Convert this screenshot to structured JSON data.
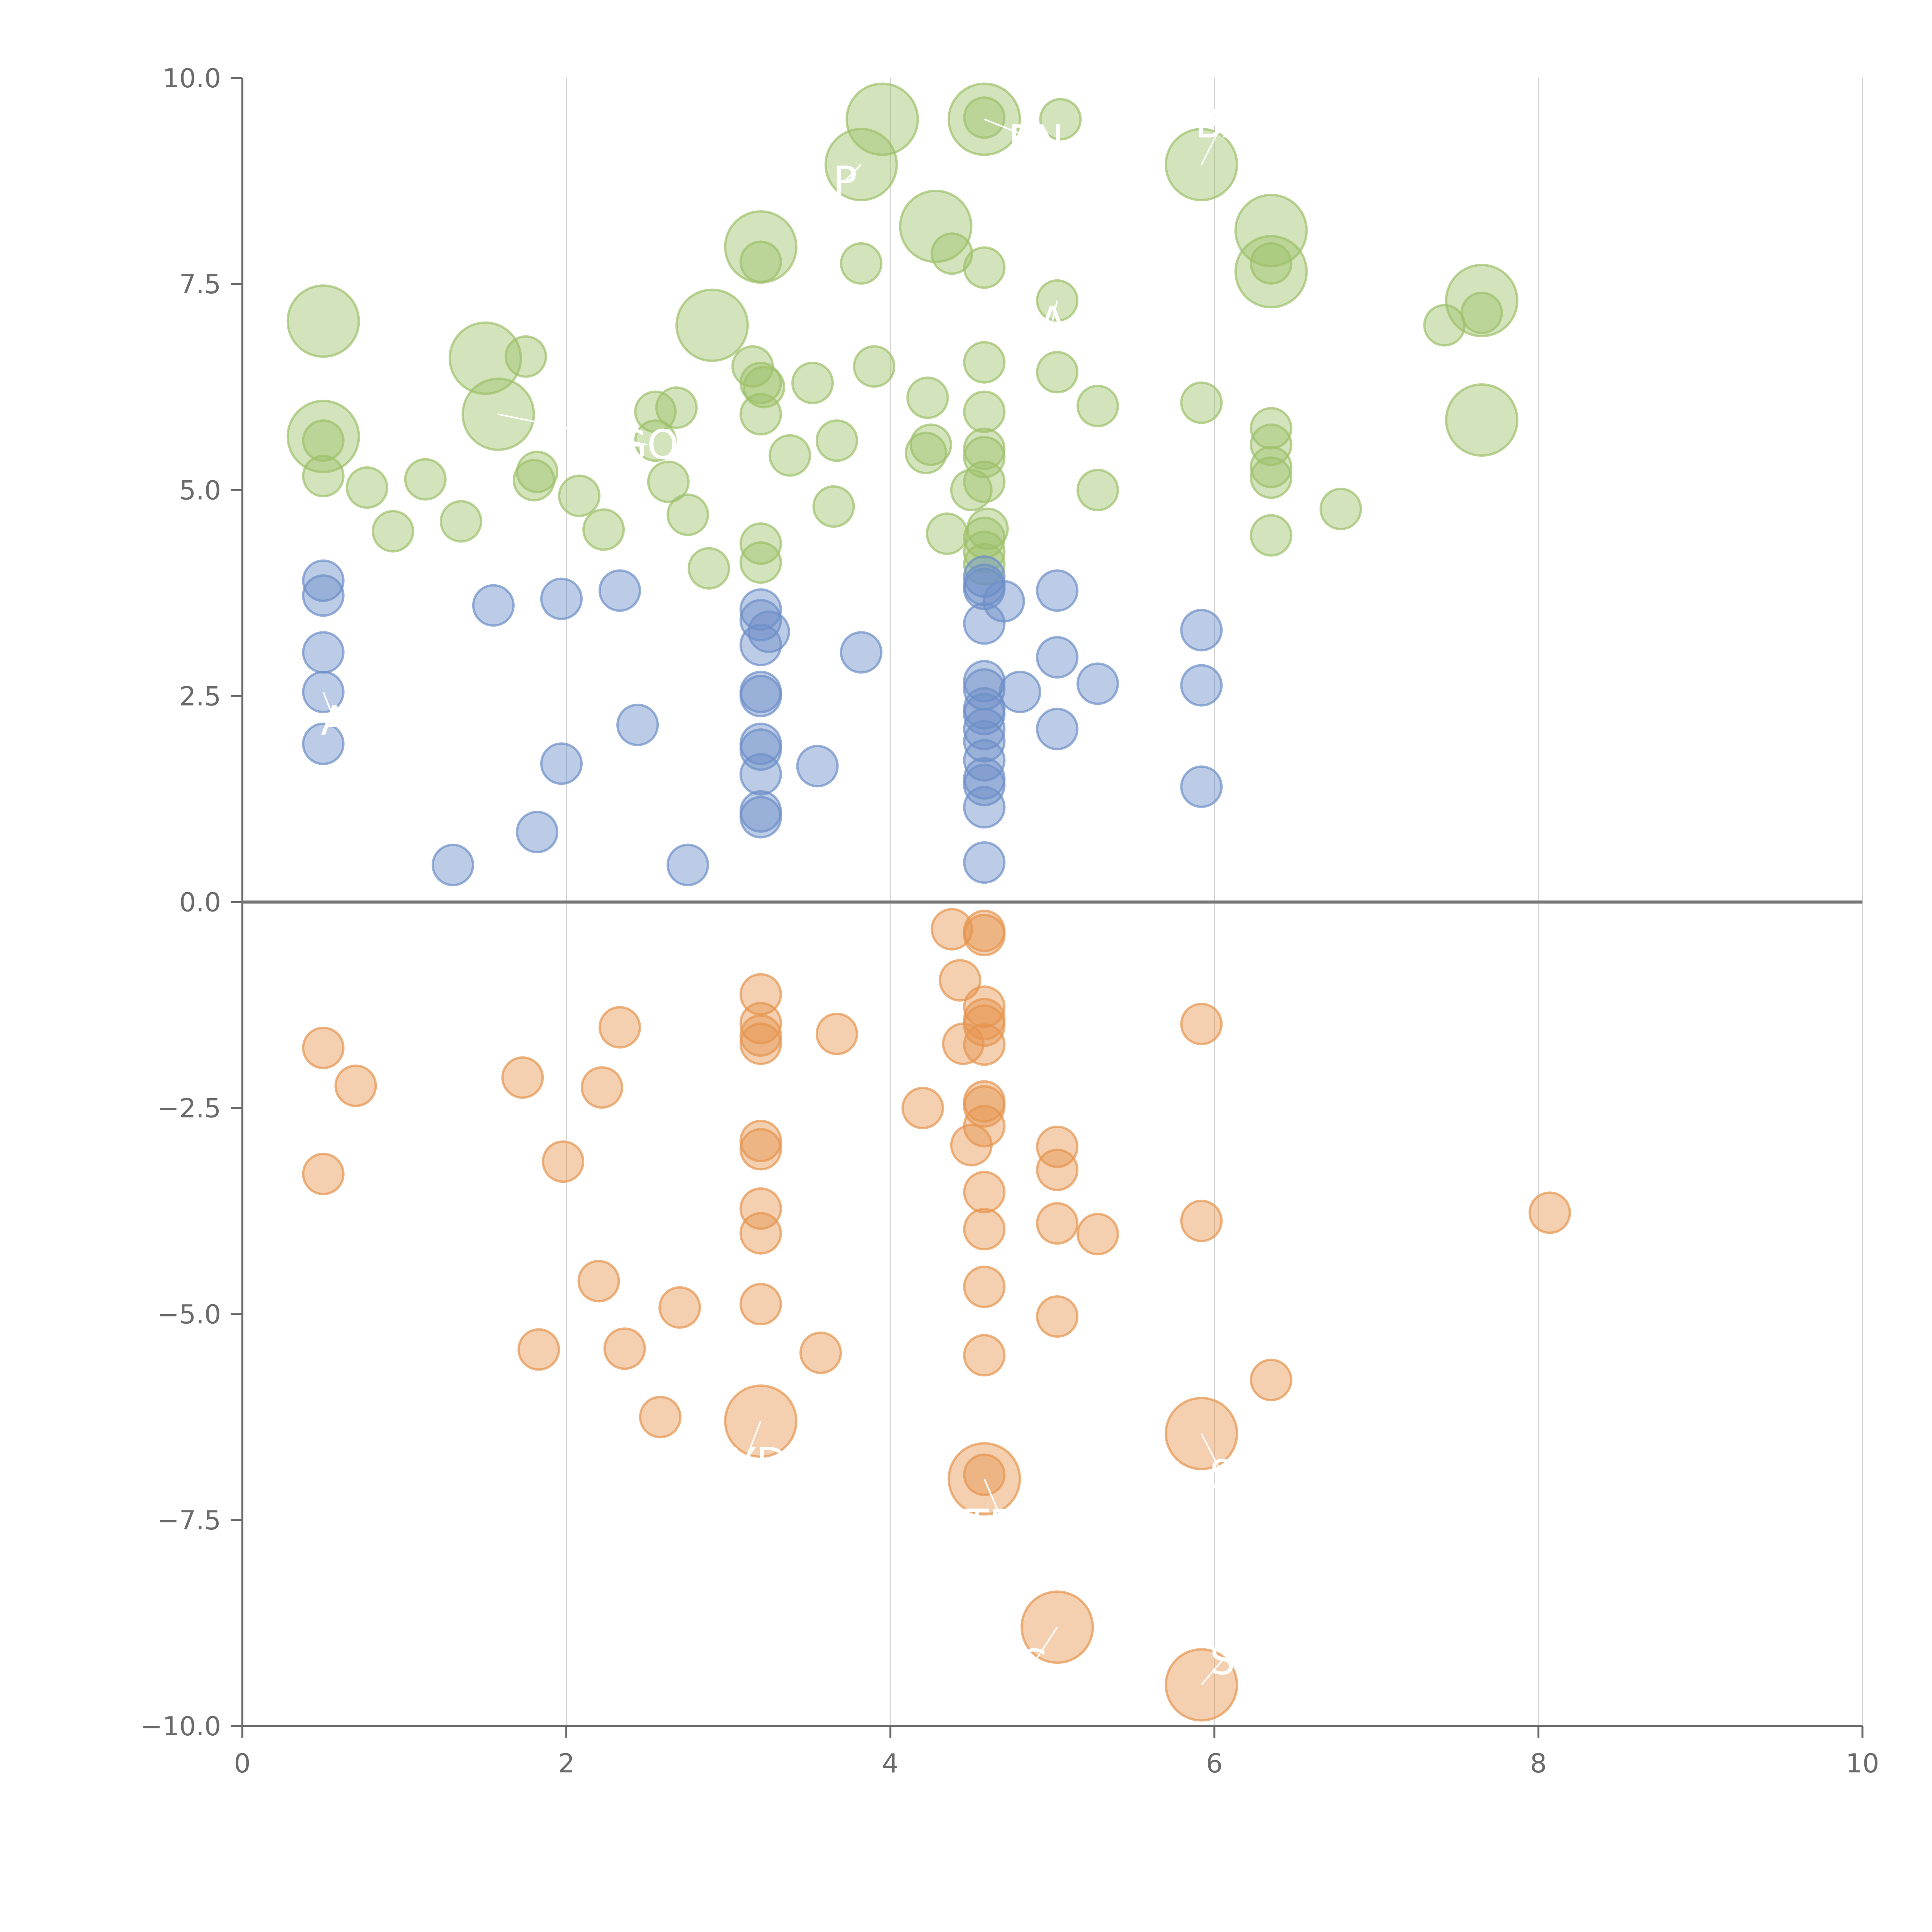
{
  "colors": {
    "positive_high": "#9dc16a",
    "positive_low": "#6c8fc8",
    "negative": "#e6944f",
    "axis": "#6b6b6b",
    "grid": "#d4d4d4",
    "zero_line": "#777777",
    "label": "#ffffff"
  },
  "chart_data": {
    "type": "scatter",
    "title": "",
    "xlabel": "",
    "ylabel": "",
    "xlim": [
      0,
      10
    ],
    "ylim": [
      -10,
      10
    ],
    "x_ticks": [
      0,
      2,
      4,
      6,
      8,
      10
    ],
    "x_tick_labels": [
      "0",
      "2",
      "4",
      "6",
      "8",
      "10"
    ],
    "y_ticks": [
      -10,
      -7.5,
      -5,
      -2.5,
      0,
      2.5,
      5,
      7.5,
      10
    ],
    "y_tick_labels": [
      "−10.0",
      "−7.5",
      "−5.0",
      "−2.5",
      "0.0",
      "2.5",
      "5.0",
      "7.5",
      "10.0"
    ],
    "grid": "vertical",
    "zero_line": true,
    "series": [
      {
        "name": "high positive",
        "color_key": "positive_high",
        "points": [
          [
            3.95,
            9.5,
            2
          ],
          [
            4.58,
            9.5,
            2
          ],
          [
            4.58,
            9.52,
            1
          ],
          [
            5.05,
            9.5,
            1
          ],
          [
            3.82,
            8.95,
            2
          ],
          [
            5.92,
            8.95,
            2
          ],
          [
            4.28,
            8.2,
            2
          ],
          [
            6.35,
            8.15,
            2
          ],
          [
            3.2,
            7.95,
            2
          ],
          [
            3.2,
            7.77,
            1
          ],
          [
            4.38,
            7.87,
            1
          ],
          [
            4.58,
            7.7,
            1
          ],
          [
            3.82,
            7.75,
            1
          ],
          [
            6.35,
            7.75,
            1
          ],
          [
            6.35,
            7.65,
            2
          ],
          [
            7.65,
            7.3,
            2
          ],
          [
            7.65,
            7.15,
            1
          ],
          [
            7.42,
            7.0,
            1
          ],
          [
            5.03,
            7.3,
            1
          ],
          [
            0.5,
            7.05,
            2
          ],
          [
            2.9,
            7.0,
            2
          ],
          [
            1.5,
            6.6,
            2
          ],
          [
            1.75,
            6.62,
            1
          ],
          [
            3.15,
            6.5,
            1
          ],
          [
            3.9,
            6.5,
            1
          ],
          [
            4.58,
            6.55,
            1
          ],
          [
            5.03,
            6.43,
            1
          ],
          [
            3.2,
            6.3,
            1
          ],
          [
            3.22,
            6.25,
            1
          ],
          [
            3.52,
            6.3,
            1
          ],
          [
            4.23,
            6.12,
            1
          ],
          [
            5.28,
            6.02,
            1
          ],
          [
            5.92,
            6.06,
            1
          ],
          [
            2.55,
            5.95,
            1
          ],
          [
            2.68,
            6.0,
            1
          ],
          [
            3.2,
            5.92,
            1
          ],
          [
            4.58,
            5.95,
            1
          ],
          [
            6.35,
            5.75,
            1
          ],
          [
            7.65,
            5.85,
            2
          ],
          [
            1.58,
            5.92,
            2
          ],
          [
            0.5,
            5.65,
            2
          ],
          [
            0.5,
            5.6,
            1
          ],
          [
            2.55,
            5.6,
            1
          ],
          [
            3.67,
            5.6,
            1
          ],
          [
            4.25,
            5.55,
            1
          ],
          [
            4.22,
            5.45,
            1
          ],
          [
            4.58,
            5.5,
            1
          ],
          [
            4.58,
            5.4,
            1
          ],
          [
            6.35,
            5.55,
            1
          ],
          [
            3.38,
            5.42,
            1
          ],
          [
            6.35,
            5.28,
            1
          ],
          [
            6.35,
            5.15,
            1
          ],
          [
            1.82,
            5.22,
            1
          ],
          [
            1.8,
            5.12,
            1
          ],
          [
            0.5,
            5.17,
            1
          ],
          [
            1.13,
            5.13,
            1
          ],
          [
            0.77,
            5.03,
            1
          ],
          [
            2.63,
            5.1,
            1
          ],
          [
            4.58,
            5.1,
            1
          ],
          [
            4.5,
            5.0,
            1
          ],
          [
            5.28,
            5.0,
            1
          ],
          [
            2.08,
            4.93,
            1
          ],
          [
            3.65,
            4.8,
            1
          ],
          [
            6.78,
            4.77,
            1
          ],
          [
            2.75,
            4.7,
            1
          ],
          [
            0.93,
            4.5,
            1
          ],
          [
            1.35,
            4.62,
            1
          ],
          [
            2.23,
            4.52,
            1
          ],
          [
            4.35,
            4.47,
            1
          ],
          [
            4.6,
            4.53,
            1
          ],
          [
            4.58,
            4.42,
            1
          ],
          [
            6.35,
            4.45,
            1
          ],
          [
            3.2,
            4.35,
            1
          ],
          [
            4.58,
            4.25,
            1
          ],
          [
            3.2,
            4.12,
            1
          ],
          [
            4.58,
            4.1,
            1
          ],
          [
            2.88,
            4.05,
            1
          ]
        ]
      },
      {
        "name": "low positive",
        "color_key": "positive_low",
        "points": [
          [
            0.5,
            3.9,
            1
          ],
          [
            0.5,
            3.72,
            1
          ],
          [
            1.55,
            3.6,
            1
          ],
          [
            1.97,
            3.68,
            1
          ],
          [
            2.33,
            3.78,
            1
          ],
          [
            3.2,
            3.55,
            1
          ],
          [
            3.2,
            3.42,
            1
          ],
          [
            3.25,
            3.28,
            1
          ],
          [
            3.2,
            3.12,
            1
          ],
          [
            3.82,
            3.03,
            1
          ],
          [
            4.58,
            3.95,
            1
          ],
          [
            4.58,
            3.85,
            1
          ],
          [
            4.58,
            3.8,
            1
          ],
          [
            4.7,
            3.65,
            1
          ],
          [
            4.58,
            3.38,
            1
          ],
          [
            5.03,
            3.78,
            1
          ],
          [
            5.92,
            3.3,
            1
          ],
          [
            0.5,
            3.03,
            1
          ],
          [
            5.03,
            2.97,
            1
          ],
          [
            4.58,
            2.68,
            1
          ],
          [
            5.28,
            2.65,
            1
          ],
          [
            5.92,
            2.63,
            1
          ],
          [
            4.58,
            2.58,
            1
          ],
          [
            4.8,
            2.55,
            1
          ],
          [
            0.5,
            2.55,
            1
          ],
          [
            3.2,
            2.55,
            1
          ],
          [
            3.2,
            2.5,
            1
          ],
          [
            4.58,
            2.35,
            1
          ],
          [
            4.58,
            2.28,
            1
          ],
          [
            2.44,
            2.15,
            1
          ],
          [
            4.58,
            2.1,
            1
          ],
          [
            5.03,
            2.1,
            1
          ],
          [
            4.58,
            1.95,
            1
          ],
          [
            3.2,
            1.92,
            1
          ],
          [
            3.2,
            1.85,
            1
          ],
          [
            0.5,
            1.92,
            1
          ],
          [
            4.58,
            1.72,
            1
          ],
          [
            1.97,
            1.68,
            1
          ],
          [
            3.55,
            1.65,
            1
          ],
          [
            3.2,
            1.55,
            1
          ],
          [
            4.58,
            1.5,
            1
          ],
          [
            4.58,
            1.42,
            1
          ],
          [
            5.92,
            1.4,
            1
          ],
          [
            4.58,
            1.15,
            1
          ],
          [
            3.2,
            1.1,
            1
          ],
          [
            3.2,
            1.03,
            1
          ],
          [
            1.82,
            0.85,
            1
          ],
          [
            1.3,
            0.45,
            1
          ],
          [
            2.75,
            0.45,
            1
          ],
          [
            4.58,
            0.48,
            1
          ]
        ]
      },
      {
        "name": "negative",
        "color_key": "negative",
        "points": [
          [
            4.38,
            -0.33,
            1
          ],
          [
            4.58,
            -0.35,
            1
          ],
          [
            4.58,
            -0.4,
            1
          ],
          [
            4.43,
            -0.95,
            1
          ],
          [
            3.2,
            -1.12,
            1
          ],
          [
            4.58,
            -1.27,
            1
          ],
          [
            3.2,
            -1.47,
            1
          ],
          [
            2.33,
            -1.52,
            1
          ],
          [
            4.58,
            -1.42,
            1
          ],
          [
            4.58,
            -1.5,
            1
          ],
          [
            5.92,
            -1.48,
            1
          ],
          [
            3.2,
            -1.62,
            1
          ],
          [
            3.67,
            -1.6,
            1
          ],
          [
            3.2,
            -1.72,
            1
          ],
          [
            4.45,
            -1.72,
            1
          ],
          [
            4.58,
            -1.73,
            1
          ],
          [
            0.5,
            -1.77,
            1
          ],
          [
            1.73,
            -2.13,
            1
          ],
          [
            0.7,
            -2.23,
            1
          ],
          [
            2.22,
            -2.25,
            1
          ],
          [
            4.2,
            -2.5,
            1
          ],
          [
            4.58,
            -2.42,
            1
          ],
          [
            4.58,
            -2.48,
            1
          ],
          [
            4.58,
            -2.72,
            1
          ],
          [
            4.5,
            -2.95,
            1
          ],
          [
            3.2,
            -2.9,
            1
          ],
          [
            3.2,
            -3.0,
            1
          ],
          [
            5.03,
            -2.97,
            1
          ],
          [
            1.98,
            -3.15,
            1
          ],
          [
            5.03,
            -3.25,
            1
          ],
          [
            0.5,
            -3.3,
            1
          ],
          [
            4.58,
            -3.52,
            1
          ],
          [
            3.2,
            -3.72,
            1
          ],
          [
            8.07,
            -3.77,
            1
          ],
          [
            5.92,
            -3.87,
            1
          ],
          [
            5.03,
            -3.9,
            1
          ],
          [
            4.58,
            -3.97,
            1
          ],
          [
            3.2,
            -4.02,
            1
          ],
          [
            5.28,
            -4.03,
            1
          ],
          [
            2.2,
            -4.6,
            1
          ],
          [
            4.58,
            -4.67,
            1
          ],
          [
            3.2,
            -4.88,
            1
          ],
          [
            2.7,
            -4.92,
            1
          ],
          [
            5.03,
            -5.03,
            1
          ],
          [
            1.83,
            -5.43,
            1
          ],
          [
            2.36,
            -5.42,
            1
          ],
          [
            3.57,
            -5.47,
            1
          ],
          [
            4.58,
            -5.5,
            1
          ],
          [
            6.35,
            -5.8,
            1
          ],
          [
            2.58,
            -6.25,
            1
          ],
          [
            3.2,
            -6.3,
            2
          ],
          [
            5.92,
            -6.45,
            2
          ],
          [
            4.58,
            -7.0,
            2
          ],
          [
            4.58,
            -6.95,
            1
          ],
          [
            5.03,
            -8.8,
            2
          ],
          [
            5.92,
            -9.5,
            2
          ]
        ]
      }
    ],
    "labels": [
      {
        "text": "EN",
        "x": 4.9,
        "y": 9.25,
        "ax": 4.58,
        "ay": 9.5
      },
      {
        "text": "BA",
        "x": 6.05,
        "y": 9.45,
        "ax": 5.92,
        "ay": 8.95
      },
      {
        "text": "P",
        "x": 3.72,
        "y": 8.75,
        "ax": 3.82,
        "ay": 8.95
      },
      {
        "text": "GO",
        "x": 2.5,
        "y": 5.55,
        "ax": 1.58,
        "ay": 5.92
      },
      {
        "text": "A",
        "x": 5.0,
        "y": 7.05,
        "ax": 5.03,
        "ay": 7.3
      },
      {
        "text": "A",
        "x": 0.57,
        "y": 2.2,
        "ax": 0.5,
        "ay": 2.55
      },
      {
        "text": "OYD",
        "x": 3.1,
        "y": -6.8,
        "ax": 3.2,
        "ay": -6.3
      },
      {
        "text": "S",
        "x": 6.05,
        "y": -6.95,
        "ax": 5.92,
        "ay": -6.45
      },
      {
        "text": "TRA",
        "x": 4.7,
        "y": -7.55,
        "ax": 4.58,
        "ay": -7.0
      },
      {
        "text": "G",
        "x": 4.88,
        "y": -9.25,
        "ax": 5.03,
        "ay": -8.8
      },
      {
        "text": "S",
        "x": 6.05,
        "y": -9.2,
        "ax": 5.92,
        "ay": -9.5
      }
    ]
  }
}
